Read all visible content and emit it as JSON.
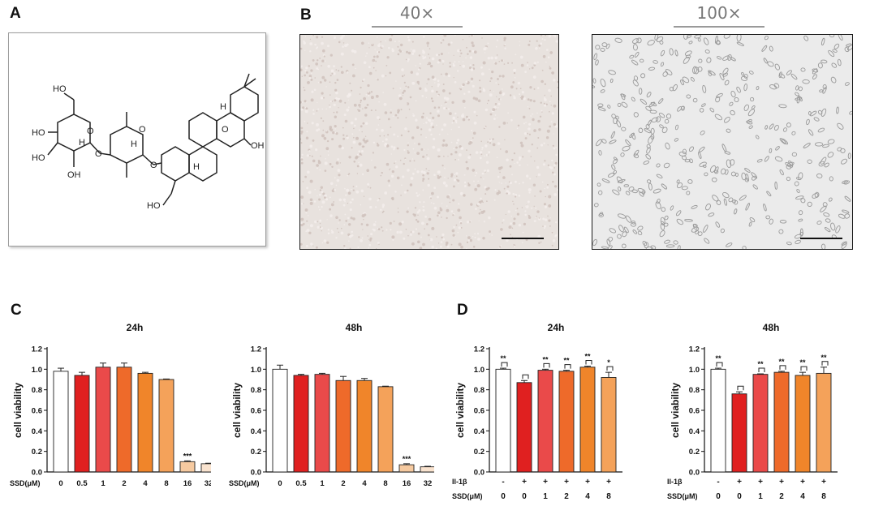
{
  "panels": {
    "A": {
      "letter": "A"
    },
    "B": {
      "letter": "B",
      "left_mag": "40×",
      "right_mag": "100×"
    },
    "C": {
      "letter": "C"
    },
    "D": {
      "letter": "D"
    }
  },
  "structure": {
    "labels": [
      "HO",
      "HO",
      "HO",
      "OH",
      "O",
      "O",
      "H",
      "O",
      "O",
      "H",
      "H",
      "H",
      "O",
      "OH",
      "HO"
    ]
  },
  "colors": {
    "white": "#ffffff",
    "red": "#e02020",
    "coral": "#ea4a4a",
    "orange1": "#ee6a2a",
    "orange2": "#f0852a",
    "orange3": "#f4a25a",
    "peach": "#f6caa0",
    "pale": "#f9e3cf"
  },
  "chart_data": [
    {
      "id": "C-24h",
      "type": "bar",
      "title": "24h",
      "ylabel": "cell viability",
      "xlabel_prefix": "SSD(μM)",
      "categories": [
        "0",
        "0.5",
        "1",
        "2",
        "4",
        "8",
        "16",
        "32"
      ],
      "values": [
        0.98,
        0.94,
        1.02,
        1.02,
        0.96,
        0.9,
        0.1,
        0.08
      ],
      "errors": [
        0.03,
        0.03,
        0.04,
        0.04,
        0.01,
        0.005,
        0.008,
        0.005
      ],
      "annotations": [
        "",
        "",
        "",
        "",
        "",
        "",
        "***",
        ""
      ],
      "ylim": [
        0,
        1.2
      ],
      "yticks": [
        "0.0",
        "0.2",
        "0.4",
        "0.6",
        "0.8",
        "1.0",
        "1.2"
      ]
    },
    {
      "id": "C-48h",
      "type": "bar",
      "title": "48h",
      "ylabel": "cell viability",
      "xlabel_prefix": "SSD(μM)",
      "categories": [
        "0",
        "0.5",
        "1",
        "2",
        "4",
        "8",
        "16",
        "32"
      ],
      "values": [
        1.0,
        0.94,
        0.95,
        0.89,
        0.89,
        0.83,
        0.07,
        0.05
      ],
      "errors": [
        0.04,
        0.01,
        0.01,
        0.04,
        0.02,
        0.005,
        0.01,
        0.005
      ],
      "annotations": [
        "",
        "",
        "",
        "",
        "",
        "",
        "***",
        ""
      ],
      "ylim": [
        0,
        1.2
      ],
      "yticks": [
        "0.0",
        "0.2",
        "0.4",
        "0.6",
        "0.8",
        "1.0",
        "1.2"
      ]
    },
    {
      "id": "D-24h",
      "type": "bar",
      "title": "24h",
      "ylabel": "cell viability",
      "row1_label": "Il-1β",
      "row2_label": "SSD(μM)",
      "row1": [
        "-",
        "+",
        "+",
        "+",
        "+",
        "+"
      ],
      "categories": [
        "0",
        "0",
        "1",
        "2",
        "4",
        "8"
      ],
      "values": [
        1.0,
        0.87,
        0.99,
        0.98,
        1.02,
        0.92
      ],
      "errors": [
        0.01,
        0.02,
        0.01,
        0.01,
        0.01,
        0.05
      ],
      "annotations": [
        "**",
        "",
        "**",
        "**",
        "**",
        "*"
      ],
      "ylim": [
        0,
        1.2
      ],
      "yticks": [
        "0.0",
        "0.2",
        "0.4",
        "0.6",
        "0.8",
        "1.0",
        "1.2"
      ]
    },
    {
      "id": "D-48h",
      "type": "bar",
      "title": "48h",
      "ylabel": "cell viability",
      "row1_label": "Il-1β",
      "row2_label": "SSD(μM)",
      "row1": [
        "-",
        "+",
        "+",
        "+",
        "+",
        "+"
      ],
      "categories": [
        "0",
        "0",
        "1",
        "2",
        "4",
        "8"
      ],
      "values": [
        1.0,
        0.76,
        0.95,
        0.97,
        0.94,
        0.96
      ],
      "errors": [
        0.01,
        0.02,
        0.005,
        0.01,
        0.03,
        0.06
      ],
      "annotations": [
        "**",
        "",
        "**",
        "**",
        "**",
        "**"
      ],
      "ylim": [
        0,
        1.2
      ],
      "yticks": [
        "0.0",
        "0.2",
        "0.4",
        "0.6",
        "0.8",
        "1.0",
        "1.2"
      ]
    }
  ]
}
